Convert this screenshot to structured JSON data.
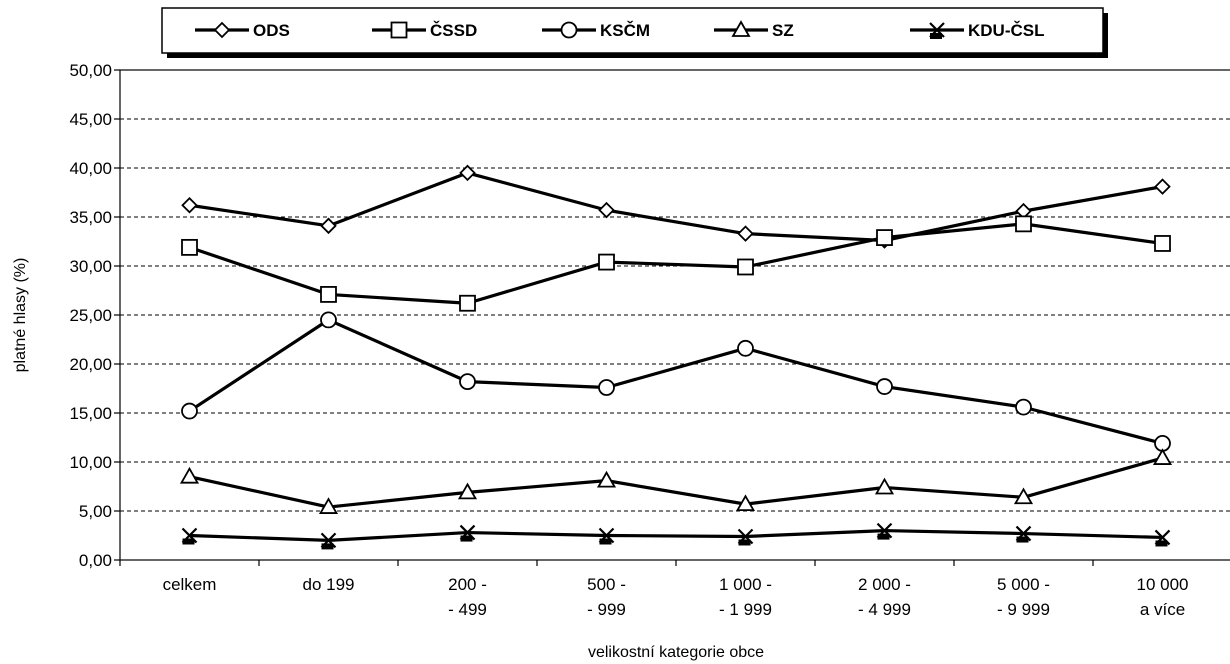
{
  "chart_data": {
    "type": "line",
    "categories": [
      [
        "celkem"
      ],
      [
        "do 199"
      ],
      [
        "200 -",
        "- 499"
      ],
      [
        "500 -",
        "- 999"
      ],
      [
        "1 000 -",
        "- 1 999"
      ],
      [
        "2 000 -",
        "- 4 999"
      ],
      [
        "5 000 -",
        "- 9 999"
      ],
      [
        "10 000",
        "a více"
      ]
    ],
    "xlabel": "velikostní kategorie obce",
    "ylabel": "platné hlasy (%)",
    "ylim": [
      0,
      50
    ],
    "yticks": [
      "0,00",
      "5,00",
      "10,00",
      "15,00",
      "20,00",
      "25,00",
      "30,00",
      "35,00",
      "40,00",
      "45,00",
      "50,00"
    ],
    "grid": "horizontal dashed",
    "legend_position": "top",
    "series": [
      {
        "name": "ODS",
        "marker": "diamond",
        "values": [
          36.2,
          34.1,
          39.5,
          35.7,
          33.3,
          32.6,
          35.6,
          38.1
        ]
      },
      {
        "name": "ČSSD",
        "marker": "square",
        "values": [
          31.9,
          27.1,
          26.2,
          30.4,
          29.9,
          32.9,
          34.3,
          32.3
        ]
      },
      {
        "name": "KSČM",
        "marker": "circle",
        "values": [
          15.2,
          24.5,
          18.2,
          17.6,
          21.6,
          17.7,
          15.6,
          11.9
        ]
      },
      {
        "name": "SZ",
        "marker": "triangle",
        "values": [
          8.5,
          5.4,
          6.9,
          8.1,
          5.7,
          7.4,
          6.4,
          10.4
        ]
      },
      {
        "name": "KDU-ČSL",
        "marker": "x",
        "values": [
          2.5,
          2.0,
          2.8,
          2.5,
          2.4,
          3.0,
          2.7,
          2.3
        ]
      }
    ]
  }
}
